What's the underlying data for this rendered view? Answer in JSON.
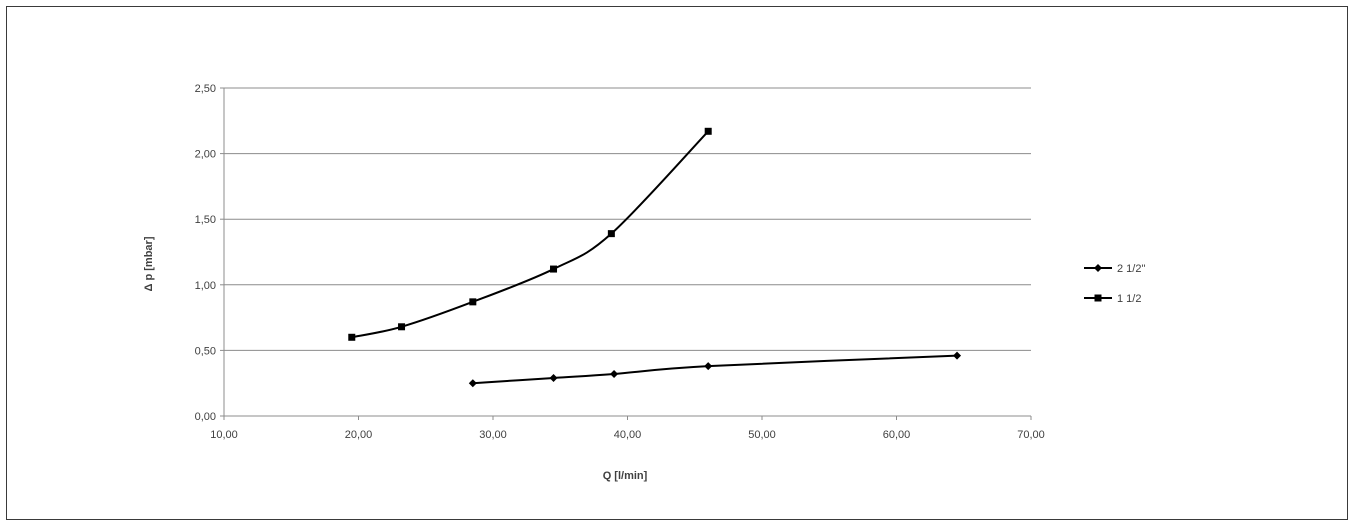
{
  "chart_data": {
    "type": "line",
    "xlabel": "Q [l/min]",
    "ylabel": "Δ p [mbar]",
    "xlim": [
      10,
      70
    ],
    "ylim": [
      0,
      2.5
    ],
    "x_ticks": [
      "10,00",
      "20,00",
      "30,00",
      "40,00",
      "50,00",
      "60,00",
      "70,00"
    ],
    "y_ticks": [
      "0,00",
      "0,50",
      "1,00",
      "1,50",
      "2,00",
      "2,50"
    ],
    "x_tick_values": [
      10,
      20,
      30,
      40,
      50,
      60,
      70
    ],
    "y_tick_values": [
      0,
      0.5,
      1.0,
      1.5,
      2.0,
      2.5
    ],
    "grid": "horizontal",
    "legend_position": "right",
    "series": [
      {
        "name": "2 1/2\"",
        "marker": "diamond",
        "color": "#000000",
        "points": [
          [
            28.5,
            0.25
          ],
          [
            34.5,
            0.29
          ],
          [
            39.0,
            0.32
          ],
          [
            46.0,
            0.38
          ],
          [
            64.5,
            0.46
          ]
        ]
      },
      {
        "name": "1 1/2",
        "marker": "square",
        "color": "#000000",
        "points": [
          [
            19.5,
            0.6
          ],
          [
            23.2,
            0.68
          ],
          [
            28.5,
            0.87
          ],
          [
            34.5,
            1.12
          ],
          [
            38.8,
            1.39
          ],
          [
            46.0,
            2.17
          ]
        ]
      }
    ]
  }
}
